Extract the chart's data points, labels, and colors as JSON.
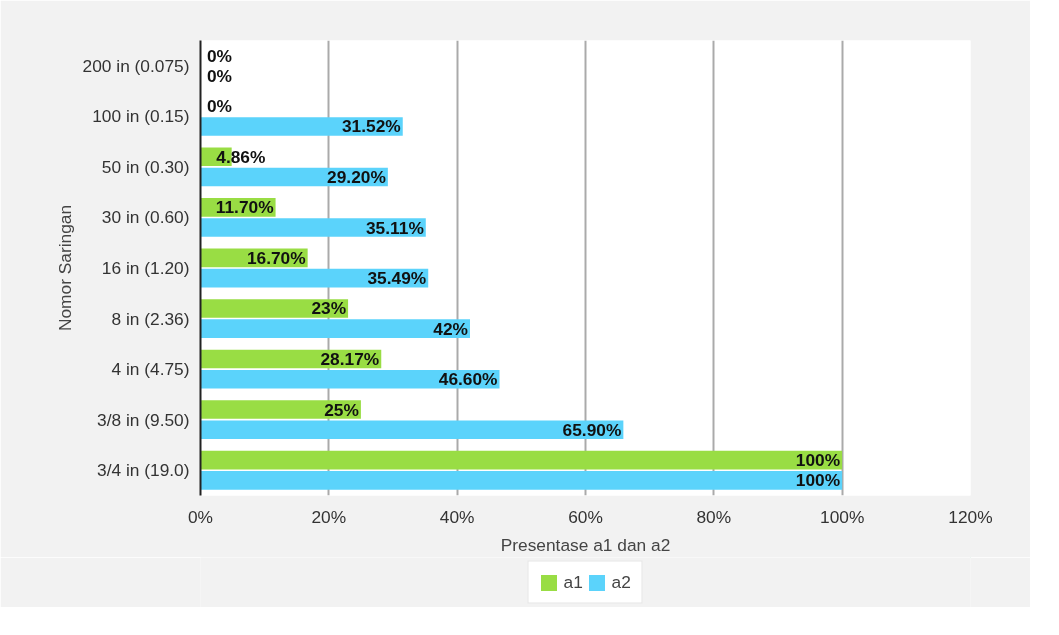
{
  "chart_data": {
    "type": "bar",
    "orientation": "horizontal",
    "xlabel": "Presentase a1 dan a2",
    "ylabel": "Nomor Saringan",
    "categories": [
      "200 in (0.075)",
      "100 in (0.15)",
      "50 in (0.30)",
      "30 in (0.60)",
      "16 in (1.20)",
      "8 in (2.36)",
      "4 in (4.75)",
      "3/8 in (9.50)",
      "3/4 in (19.0)"
    ],
    "series": [
      {
        "name": "a1",
        "color": "#99dd44",
        "values": [
          0,
          0,
          4.86,
          11.7,
          16.7,
          23,
          28.17,
          25,
          100
        ],
        "value_labels": [
          "0%",
          "0%",
          "4.86%",
          "11.70%",
          "16.70%",
          "23%",
          "28.17%",
          "25%",
          "100%"
        ]
      },
      {
        "name": "a2",
        "color": "#5bd3fb",
        "values": [
          0,
          31.52,
          29.2,
          35.11,
          35.49,
          42,
          46.6,
          65.9,
          100
        ],
        "value_labels": [
          "0%",
          "31.52%",
          "29.20%",
          "35.11%",
          "35.49%",
          "42%",
          "46.60%",
          "65.90%",
          "100%"
        ]
      }
    ],
    "xlim": [
      0,
      120
    ],
    "xticks": [
      {
        "value": 0,
        "label": "0%"
      },
      {
        "value": 20,
        "label": "20%"
      },
      {
        "value": 40,
        "label": "40%"
      },
      {
        "value": 60,
        "label": "60%"
      },
      {
        "value": 80,
        "label": "80%"
      },
      {
        "value": 100,
        "label": "100%"
      },
      {
        "value": 120,
        "label": "120%"
      }
    ],
    "grid": "x",
    "legend": "bottom"
  }
}
